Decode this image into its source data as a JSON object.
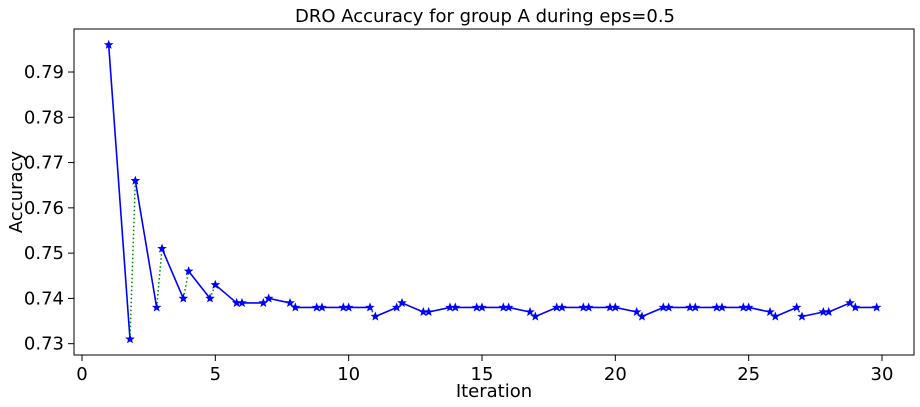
{
  "chart_data": {
    "type": "line",
    "title": "DRO Accuracy for group A during eps=0.5",
    "xlabel": "Iteration",
    "ylabel": "Accuracy",
    "xlim": [
      -0.3,
      31.2
    ],
    "ylim": [
      0.7275,
      0.7995
    ],
    "xticks": [
      0,
      5,
      10,
      15,
      20,
      25,
      30
    ],
    "xtick_labels": [
      "0",
      "5",
      "10",
      "15",
      "20",
      "25",
      "30"
    ],
    "yticks": [
      0.73,
      0.74,
      0.75,
      0.76,
      0.77,
      0.78,
      0.79
    ],
    "ytick_labels": [
      "0.73",
      "0.74",
      "0.75",
      "0.76",
      "0.77",
      "0.78",
      "0.79"
    ],
    "grid": false,
    "series": [
      {
        "style": "solid",
        "color": "#0000ff",
        "segments": [
          {
            "x": [
              1.0,
              1.8
            ],
            "y": [
              0.796,
              0.731
            ]
          },
          {
            "x": [
              2.0,
              2.8
            ],
            "y": [
              0.766,
              0.738
            ]
          },
          {
            "x": [
              3.0,
              3.8
            ],
            "y": [
              0.751,
              0.74
            ]
          },
          {
            "x": [
              4.0,
              4.8
            ],
            "y": [
              0.746,
              0.74
            ]
          },
          {
            "x": [
              5.0,
              5.8
            ],
            "y": [
              0.743,
              0.739
            ]
          },
          {
            "x": [
              6.0,
              6.8
            ],
            "y": [
              0.739,
              0.739
            ]
          },
          {
            "x": [
              7.0,
              7.8
            ],
            "y": [
              0.74,
              0.739
            ]
          },
          {
            "x": [
              8.0,
              8.8
            ],
            "y": [
              0.738,
              0.738
            ]
          },
          {
            "x": [
              9.0,
              9.8
            ],
            "y": [
              0.738,
              0.738
            ]
          },
          {
            "x": [
              10.0,
              10.8
            ],
            "y": [
              0.738,
              0.738
            ]
          },
          {
            "x": [
              11.0,
              11.8
            ],
            "y": [
              0.736,
              0.738
            ]
          },
          {
            "x": [
              12.0,
              12.8
            ],
            "y": [
              0.739,
              0.737
            ]
          },
          {
            "x": [
              13.0,
              13.8
            ],
            "y": [
              0.737,
              0.738
            ]
          },
          {
            "x": [
              14.0,
              14.8
            ],
            "y": [
              0.738,
              0.738
            ]
          },
          {
            "x": [
              15.0,
              15.8
            ],
            "y": [
              0.738,
              0.738
            ]
          },
          {
            "x": [
              16.0,
              16.8
            ],
            "y": [
              0.738,
              0.737
            ]
          },
          {
            "x": [
              17.0,
              17.8
            ],
            "y": [
              0.736,
              0.738
            ]
          },
          {
            "x": [
              18.0,
              18.8
            ],
            "y": [
              0.738,
              0.738
            ]
          },
          {
            "x": [
              19.0,
              19.8
            ],
            "y": [
              0.738,
              0.738
            ]
          },
          {
            "x": [
              20.0,
              20.8
            ],
            "y": [
              0.738,
              0.737
            ]
          },
          {
            "x": [
              21.0,
              21.8
            ],
            "y": [
              0.736,
              0.738
            ]
          },
          {
            "x": [
              22.0,
              22.8
            ],
            "y": [
              0.738,
              0.738
            ]
          },
          {
            "x": [
              23.0,
              23.8
            ],
            "y": [
              0.738,
              0.738
            ]
          },
          {
            "x": [
              24.0,
              24.8
            ],
            "y": [
              0.738,
              0.738
            ]
          },
          {
            "x": [
              25.0,
              25.8
            ],
            "y": [
              0.738,
              0.737
            ]
          },
          {
            "x": [
              26.0,
              26.8
            ],
            "y": [
              0.736,
              0.738
            ]
          },
          {
            "x": [
              27.0,
              27.8
            ],
            "y": [
              0.736,
              0.737
            ]
          },
          {
            "x": [
              28.0,
              28.8
            ],
            "y": [
              0.737,
              0.739
            ]
          },
          {
            "x": [
              29.0,
              29.8
            ],
            "y": [
              0.738,
              0.738
            ]
          }
        ]
      },
      {
        "style": "dotted",
        "color": "#008000",
        "segments": [
          {
            "x": [
              1.8,
              2.0
            ],
            "y": [
              0.731,
              0.766
            ]
          },
          {
            "x": [
              2.8,
              3.0
            ],
            "y": [
              0.738,
              0.751
            ]
          },
          {
            "x": [
              3.8,
              4.0
            ],
            "y": [
              0.74,
              0.746
            ]
          },
          {
            "x": [
              4.8,
              5.0
            ],
            "y": [
              0.74,
              0.743
            ]
          },
          {
            "x": [
              5.8,
              6.0
            ],
            "y": [
              0.739,
              0.739
            ]
          },
          {
            "x": [
              6.8,
              7.0
            ],
            "y": [
              0.739,
              0.74
            ]
          },
          {
            "x": [
              7.8,
              8.0
            ],
            "y": [
              0.739,
              0.738
            ]
          },
          {
            "x": [
              8.8,
              9.0
            ],
            "y": [
              0.738,
              0.738
            ]
          },
          {
            "x": [
              9.8,
              10.0
            ],
            "y": [
              0.738,
              0.738
            ]
          },
          {
            "x": [
              10.8,
              11.0
            ],
            "y": [
              0.738,
              0.736
            ]
          },
          {
            "x": [
              11.8,
              12.0
            ],
            "y": [
              0.738,
              0.739
            ]
          },
          {
            "x": [
              12.8,
              13.0
            ],
            "y": [
              0.737,
              0.737
            ]
          },
          {
            "x": [
              13.8,
              14.0
            ],
            "y": [
              0.738,
              0.738
            ]
          },
          {
            "x": [
              14.8,
              15.0
            ],
            "y": [
              0.738,
              0.738
            ]
          },
          {
            "x": [
              15.8,
              16.0
            ],
            "y": [
              0.738,
              0.738
            ]
          },
          {
            "x": [
              16.8,
              17.0
            ],
            "y": [
              0.737,
              0.736
            ]
          },
          {
            "x": [
              17.8,
              18.0
            ],
            "y": [
              0.738,
              0.738
            ]
          },
          {
            "x": [
              18.8,
              19.0
            ],
            "y": [
              0.738,
              0.738
            ]
          },
          {
            "x": [
              19.8,
              20.0
            ],
            "y": [
              0.738,
              0.738
            ]
          },
          {
            "x": [
              20.8,
              21.0
            ],
            "y": [
              0.737,
              0.736
            ]
          },
          {
            "x": [
              21.8,
              22.0
            ],
            "y": [
              0.738,
              0.738
            ]
          },
          {
            "x": [
              22.8,
              23.0
            ],
            "y": [
              0.738,
              0.738
            ]
          },
          {
            "x": [
              23.8,
              24.0
            ],
            "y": [
              0.738,
              0.738
            ]
          },
          {
            "x": [
              24.8,
              25.0
            ],
            "y": [
              0.738,
              0.738
            ]
          },
          {
            "x": [
              25.8,
              26.0
            ],
            "y": [
              0.737,
              0.736
            ]
          },
          {
            "x": [
              26.8,
              27.0
            ],
            "y": [
              0.738,
              0.736
            ]
          },
          {
            "x": [
              27.8,
              28.0
            ],
            "y": [
              0.737,
              0.737
            ]
          },
          {
            "x": [
              28.8,
              29.0
            ],
            "y": [
              0.739,
              0.738
            ]
          }
        ]
      }
    ],
    "markers": {
      "symbol": "star",
      "color": "#0000ff",
      "x": [
        1.0,
        1.8,
        2.0,
        2.8,
        3.0,
        3.8,
        4.0,
        4.8,
        5.0,
        5.8,
        6.0,
        6.8,
        7.0,
        7.8,
        8.0,
        8.8,
        9.0,
        9.8,
        10.0,
        10.8,
        11.0,
        11.8,
        12.0,
        12.8,
        13.0,
        13.8,
        14.0,
        14.8,
        15.0,
        15.8,
        16.0,
        16.8,
        17.0,
        17.8,
        18.0,
        18.8,
        19.0,
        19.8,
        20.0,
        20.8,
        21.0,
        21.8,
        22.0,
        22.8,
        23.0,
        23.8,
        24.0,
        24.8,
        25.0,
        25.8,
        26.0,
        26.8,
        27.0,
        27.8,
        28.0,
        28.8,
        29.0,
        29.8
      ],
      "y": [
        0.796,
        0.731,
        0.766,
        0.738,
        0.751,
        0.74,
        0.746,
        0.74,
        0.743,
        0.739,
        0.739,
        0.739,
        0.74,
        0.739,
        0.738,
        0.738,
        0.738,
        0.738,
        0.738,
        0.738,
        0.736,
        0.738,
        0.739,
        0.737,
        0.737,
        0.738,
        0.738,
        0.738,
        0.738,
        0.738,
        0.738,
        0.737,
        0.736,
        0.738,
        0.738,
        0.738,
        0.738,
        0.738,
        0.738,
        0.737,
        0.736,
        0.738,
        0.738,
        0.738,
        0.738,
        0.738,
        0.738,
        0.738,
        0.738,
        0.737,
        0.736,
        0.738,
        0.736,
        0.737,
        0.737,
        0.739,
        0.738,
        0.738
      ]
    }
  }
}
